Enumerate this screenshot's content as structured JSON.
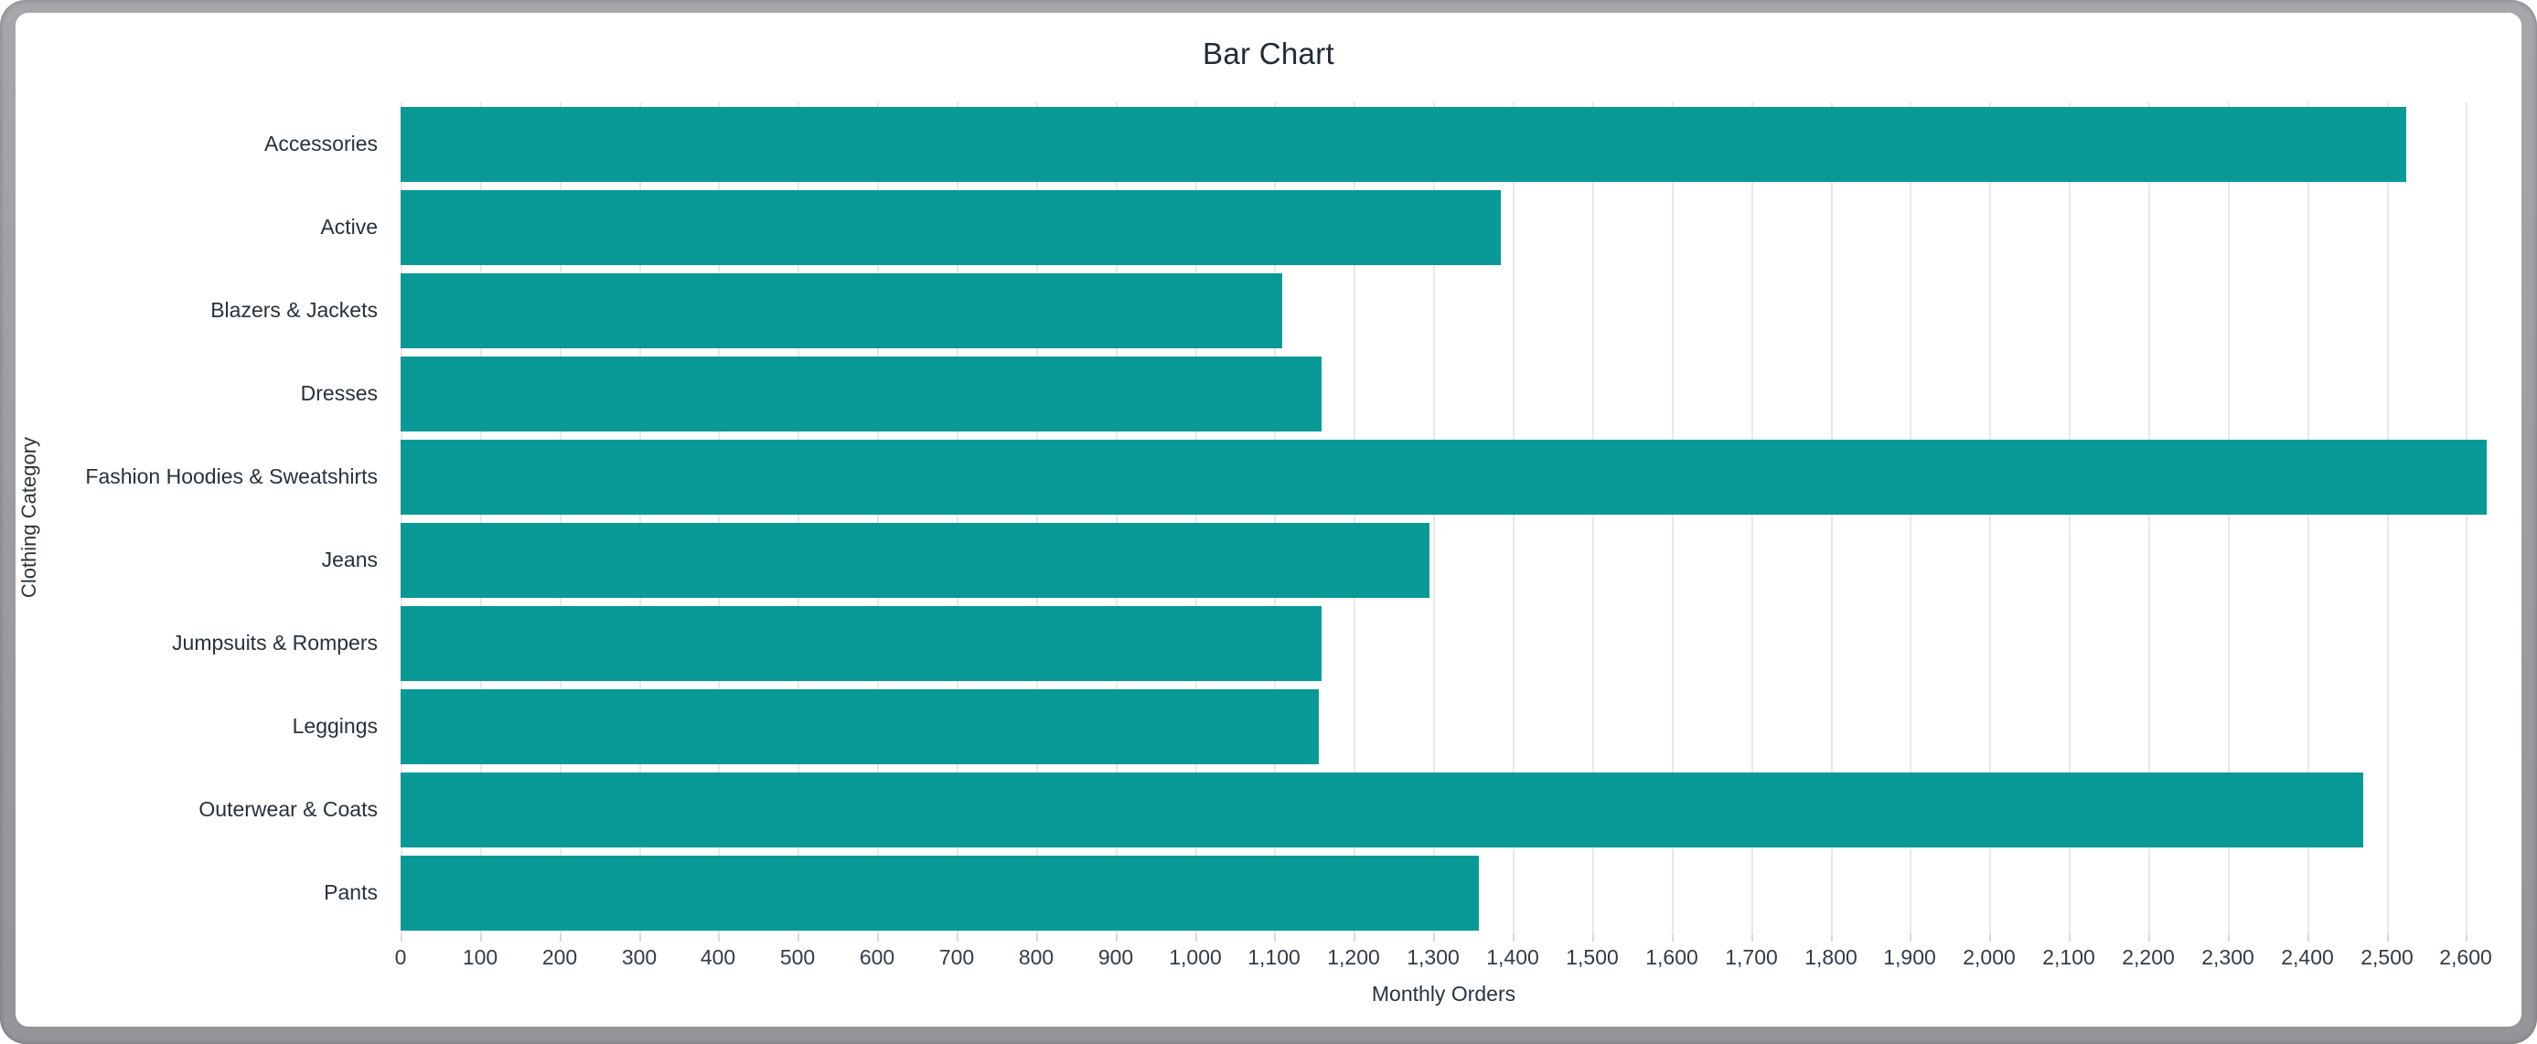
{
  "window": {
    "frame_color": "#9b9ca0",
    "canvas_color": "#ffffff"
  },
  "chart_data": {
    "type": "bar",
    "orientation": "horizontal",
    "title": "Bar Chart",
    "xlabel": "Monthly Orders",
    "ylabel": "Clothing Category",
    "categories": [
      "Accessories",
      "Active",
      "Blazers & Jackets",
      "Dresses",
      "Fashion Hoodies & Sweatshirts",
      "Jeans",
      "Jumpsuits & Rompers",
      "Leggings",
      "Outerwear & Coats",
      "Pants"
    ],
    "values": [
      2525,
      1385,
      1110,
      1159,
      2626,
      1295,
      1159,
      1156,
      2471,
      1357
    ],
    "xlim": [
      0,
      2626
    ],
    "x_ticks": [
      0,
      100,
      200,
      300,
      400,
      500,
      600,
      700,
      800,
      900,
      1000,
      1100,
      1200,
      1300,
      1400,
      1500,
      1600,
      1700,
      1800,
      1900,
      2000,
      2100,
      2200,
      2300,
      2400,
      2500,
      2600
    ],
    "x_tick_labels": [
      "0",
      "100",
      "200",
      "300",
      "400",
      "500",
      "600",
      "700",
      "800",
      "900",
      "1,000",
      "1,100",
      "1,200",
      "1,300",
      "1,400",
      "1,500",
      "1,600",
      "1,700",
      "1,800",
      "1,900",
      "2,000",
      "2,100",
      "2,200",
      "2,300",
      "2,400",
      "2,500",
      "2,600"
    ],
    "bar_color": "#099996",
    "gridline_color": "#e8e8e8",
    "text_color": "#2a333c",
    "grid": true,
    "legend": false
  }
}
